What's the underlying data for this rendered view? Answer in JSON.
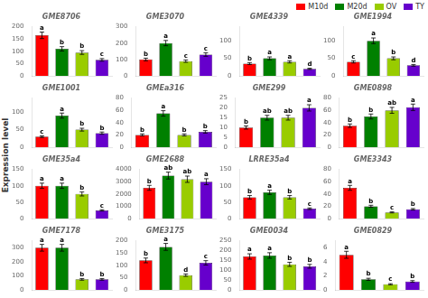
{
  "chart_data": [
    {
      "type": "bar",
      "title": "GME8706",
      "categories": [
        "M10d",
        "M20d",
        "OV",
        "TY"
      ],
      "colors": [
        "#ff0000",
        "#008000",
        "#99cc00",
        "#6600cc"
      ],
      "values": [
        165,
        110,
        95,
        65
      ],
      "errors": [
        13.2,
        8.8,
        7.6,
        5.2
      ],
      "annotations": [
        "a",
        "b",
        "b",
        "c"
      ],
      "ylim": [
        0,
        200
      ],
      "yticks": [
        0,
        50,
        100,
        150,
        200
      ],
      "ylabel": "Expression level",
      "grid": false,
      "tick_labels": "y",
      "legend": "upper right"
    },
    {
      "type": "bar",
      "title": "GME3070",
      "categories": [
        "M10d",
        "M20d",
        "OV",
        "TY"
      ],
      "colors": [
        "#ff0000",
        "#008000",
        "#99cc00",
        "#6600cc"
      ],
      "values": [
        100,
        200,
        90,
        130
      ],
      "errors": [
        8,
        16,
        7.2,
        10.4
      ],
      "annotations": [
        "b",
        "a",
        "c",
        "c"
      ],
      "ylim": [
        0,
        300
      ],
      "yticks": [
        0,
        100,
        200,
        300
      ],
      "ylabel": "Expression level",
      "grid": false,
      "tick_labels": "y",
      "legend": "upper right"
    },
    {
      "type": "bar",
      "title": "GME4339",
      "categories": [
        "M10d",
        "M20d",
        "OV",
        "TY"
      ],
      "colors": [
        "#ff0000",
        "#008000",
        "#99cc00",
        "#6600cc"
      ],
      "values": [
        35,
        50,
        40,
        20
      ],
      "errors": [
        2.8,
        4,
        3.2,
        1.6
      ],
      "annotations": [
        "b",
        "a",
        "a",
        "d"
      ],
      "ylim": [
        0,
        140
      ],
      "yticks": [
        0,
        50,
        100
      ],
      "ylabel": "Expression level",
      "grid": false,
      "tick_labels": "y",
      "legend": "upper right"
    },
    {
      "type": "bar",
      "title": "GME1994",
      "categories": [
        "M10d",
        "M20d",
        "OV",
        "TY"
      ],
      "colors": [
        "#ff0000",
        "#008000",
        "#99cc00",
        "#6600cc"
      ],
      "values": [
        40,
        100,
        50,
        30
      ],
      "errors": [
        3.2,
        8,
        4,
        2.4
      ],
      "annotations": [
        "c",
        "a",
        "b",
        "d"
      ],
      "ylim": [
        0,
        140
      ],
      "yticks": [
        0,
        50,
        100
      ],
      "ylabel": "Expression level",
      "grid": false,
      "tick_labels": "y",
      "legend": "upper right"
    },
    {
      "type": "bar",
      "title": "GME1001",
      "categories": [
        "M10d",
        "M20d",
        "OV",
        "TY"
      ],
      "colors": [
        "#ff0000",
        "#008000",
        "#99cc00",
        "#6600cc"
      ],
      "values": [
        30,
        90,
        50,
        40
      ],
      "errors": [
        2.4,
        7.2,
        4,
        3.2
      ],
      "annotations": [
        "c",
        "a",
        "b",
        "b"
      ],
      "ylim": [
        0,
        140
      ],
      "yticks": [
        0,
        50,
        100
      ],
      "ylabel": "Expression level",
      "grid": false,
      "tick_labels": "y",
      "legend": "upper right"
    },
    {
      "type": "bar",
      "title": "GMEa316",
      "categories": [
        "M10d",
        "M20d",
        "OV",
        "TY"
      ],
      "colors": [
        "#ff0000",
        "#008000",
        "#99cc00",
        "#6600cc"
      ],
      "values": [
        20,
        55,
        20,
        25
      ],
      "errors": [
        1.6,
        4.4,
        1.6,
        2
      ],
      "annotations": [
        "b",
        "a",
        "b",
        "b"
      ],
      "ylim": [
        0,
        80
      ],
      "yticks": [
        0,
        20,
        40,
        60,
        80
      ],
      "ylabel": "Expression level",
      "grid": false,
      "tick_labels": "y",
      "legend": "upper right"
    },
    {
      "type": "bar",
      "title": "GME299",
      "categories": [
        "M10d",
        "M20d",
        "OV",
        "TY"
      ],
      "colors": [
        "#ff0000",
        "#008000",
        "#99cc00",
        "#6600cc"
      ],
      "values": [
        10,
        15,
        15,
        20
      ],
      "errors": [
        0.8,
        1.2,
        1.2,
        1.6
      ],
      "annotations": [
        "b",
        "ab",
        "ab",
        "a"
      ],
      "ylim": [
        0,
        25
      ],
      "yticks": [
        0,
        5,
        10,
        15,
        20,
        25
      ],
      "ylabel": "Expression level",
      "grid": false,
      "tick_labels": "y",
      "legend": "upper right"
    },
    {
      "type": "bar",
      "title": "GME0898",
      "categories": [
        "M10d",
        "M20d",
        "OV",
        "TY"
      ],
      "colors": [
        "#ff0000",
        "#008000",
        "#99cc00",
        "#6600cc"
      ],
      "values": [
        35,
        50,
        60,
        65
      ],
      "errors": [
        2.8,
        4,
        4.8,
        5.2
      ],
      "annotations": [
        "b",
        "b",
        "ab",
        "a"
      ],
      "ylim": [
        0,
        80
      ],
      "yticks": [
        0,
        20,
        40,
        60,
        80
      ],
      "ylabel": "Expression level",
      "grid": false,
      "tick_labels": "y",
      "legend": "upper right"
    },
    {
      "type": "bar",
      "title": "GME35a4",
      "categories": [
        "M10d",
        "M20d",
        "OV",
        "TY"
      ],
      "colors": [
        "#ff0000",
        "#008000",
        "#99cc00",
        "#6600cc"
      ],
      "values": [
        100,
        100,
        75,
        25
      ],
      "errors": [
        8,
        8,
        6,
        2
      ],
      "annotations": [
        "a",
        "a",
        "b",
        "c"
      ],
      "ylim": [
        0,
        150
      ],
      "yticks": [
        0,
        50,
        100,
        150
      ],
      "ylabel": "Expression level",
      "grid": false,
      "tick_labels": "y",
      "legend": "upper right"
    },
    {
      "type": "bar",
      "title": "GME2688",
      "categories": [
        "M10d",
        "M20d",
        "OV",
        "TY"
      ],
      "colors": [
        "#ff0000",
        "#008000",
        "#99cc00",
        "#6600cc"
      ],
      "values": [
        2500,
        3500,
        3200,
        3000
      ],
      "errors": [
        200,
        280,
        256,
        240
      ],
      "annotations": [
        "b",
        "ab",
        "ab",
        "a"
      ],
      "ylim": [
        0,
        4000
      ],
      "yticks": [
        0,
        1000,
        2000,
        3000,
        4000
      ],
      "ylabel": "Expression level",
      "grid": false,
      "tick_labels": "y",
      "legend": "upper right"
    },
    {
      "type": "bar",
      "title": "LRRE35a4",
      "categories": [
        "M10d",
        "M20d",
        "OV",
        "TY"
      ],
      "colors": [
        "#ff0000",
        "#008000",
        "#99cc00",
        "#6600cc"
      ],
      "values": [
        65,
        80,
        65,
        30
      ],
      "errors": [
        5.2,
        6.4,
        5.2,
        2.4
      ],
      "annotations": [
        "b",
        "a",
        "b",
        "c"
      ],
      "ylim": [
        0,
        150
      ],
      "yticks": [
        0,
        50,
        100,
        150
      ],
      "ylabel": "Expression level",
      "grid": false,
      "tick_labels": "y",
      "legend": "upper right"
    },
    {
      "type": "bar",
      "title": "GME3343",
      "categories": [
        "M10d",
        "M20d",
        "OV",
        "TY"
      ],
      "colors": [
        "#ff0000",
        "#008000",
        "#99cc00",
        "#6600cc"
      ],
      "values": [
        50,
        20,
        10,
        15
      ],
      "errors": [
        4,
        1.6,
        0.8,
        1.2
      ],
      "annotations": [
        "a",
        "b",
        "c",
        "b"
      ],
      "ylim": [
        0,
        80
      ],
      "yticks": [
        0,
        20,
        40,
        60,
        80
      ],
      "ylabel": "Expression level",
      "grid": false,
      "tick_labels": "y",
      "legend": "upper right"
    },
    {
      "type": "bar",
      "title": "GME7178",
      "categories": [
        "M10d",
        "M20d",
        "OV",
        "TY"
      ],
      "colors": [
        "#ff0000",
        "#008000",
        "#99cc00",
        "#6600cc"
      ],
      "values": [
        300,
        300,
        75,
        75
      ],
      "errors": [
        24,
        24,
        6,
        6
      ],
      "annotations": [
        "a",
        "a",
        "b",
        "b"
      ],
      "ylim": [
        0,
        350
      ],
      "yticks": [
        0,
        100,
        200,
        300
      ],
      "ylabel": "Expression level",
      "grid": false,
      "tick_labels": "y",
      "legend": "upper right"
    },
    {
      "type": "bar",
      "title": "GME3175",
      "categories": [
        "M10d",
        "M20d",
        "OV",
        "TY"
      ],
      "colors": [
        "#ff0000",
        "#008000",
        "#99cc00",
        "#6600cc"
      ],
      "values": [
        120,
        175,
        60,
        110
      ],
      "errors": [
        9.6,
        14,
        4.8,
        8.8
      ],
      "annotations": [
        "b",
        "a",
        "d",
        "c"
      ],
      "ylim": [
        0,
        200
      ],
      "yticks": [
        0,
        50,
        100,
        150,
        200
      ],
      "ylabel": "Expression level",
      "grid": false,
      "tick_labels": "y",
      "legend": "upper right"
    },
    {
      "type": "bar",
      "title": "GME0034",
      "categories": [
        "M10d",
        "M20d",
        "OV",
        "TY"
      ],
      "colors": [
        "#ff0000",
        "#008000",
        "#99cc00",
        "#6600cc"
      ],
      "values": [
        170,
        175,
        130,
        120
      ],
      "errors": [
        13.6,
        14,
        10.4,
        9.6
      ],
      "annotations": [
        "a",
        "a",
        "b",
        "b"
      ],
      "ylim": [
        0,
        250
      ],
      "yticks": [
        0,
        50,
        100,
        150,
        200,
        250
      ],
      "ylabel": "Expression level",
      "grid": false,
      "tick_labels": "y",
      "legend": "upper right"
    },
    {
      "type": "bar",
      "title": "GME0829",
      "categories": [
        "M10d",
        "M20d",
        "OV",
        "TY"
      ],
      "colors": [
        "#ff0000",
        "#008000",
        "#99cc00",
        "#6600cc"
      ],
      "values": [
        5,
        1.5,
        0.8,
        1.2
      ],
      "errors": [
        0.5,
        0.15,
        0.08,
        0.12
      ],
      "annotations": [
        "a",
        "b",
        "c",
        "b"
      ],
      "ylim": [
        0,
        7
      ],
      "yticks": [
        0,
        2,
        4,
        6
      ],
      "grid": false,
      "tick_labels": "y"
    }
  ]
}
